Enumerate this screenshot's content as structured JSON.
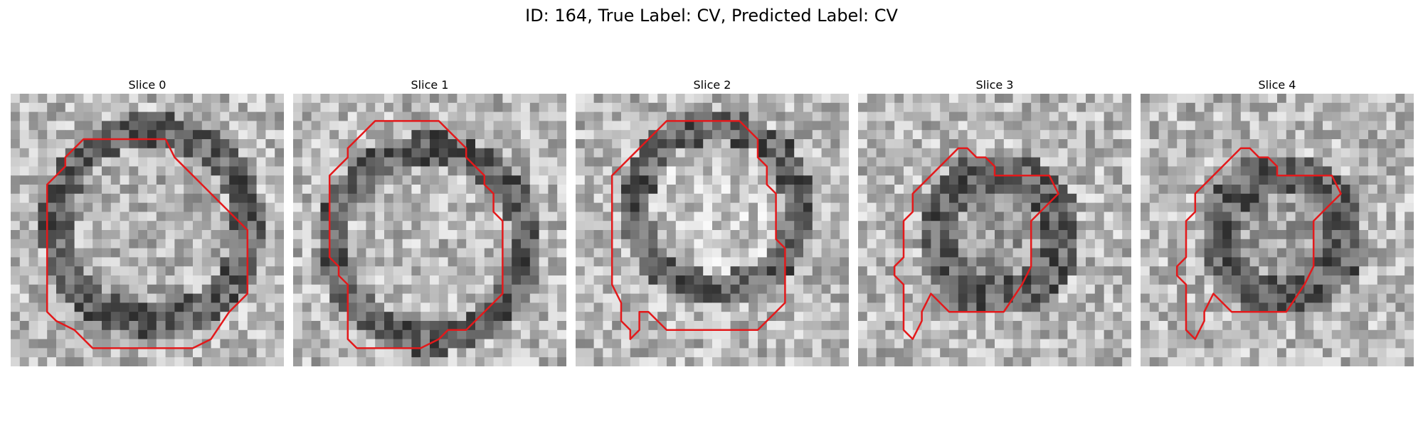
{
  "figure": {
    "title": "ID: 164, True Label: CV, Predicted Label: CV",
    "contour_color": "#e3191b",
    "slices": [
      {
        "title": "Slice 0"
      },
      {
        "title": "Slice 1"
      },
      {
        "title": "Slice 2"
      },
      {
        "title": "Slice 3"
      },
      {
        "title": "Slice 4"
      }
    ]
  }
}
